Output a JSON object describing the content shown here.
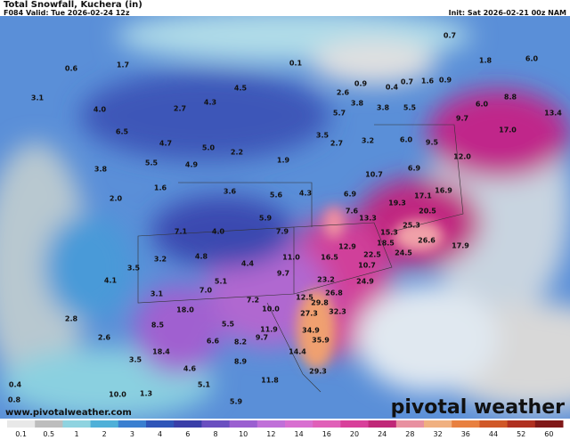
{
  "header": {
    "title": "Total Snowfall, Kuchera (in)",
    "valid": "F084 Valid: Tue 2026-02-24 12z",
    "init": "Init: Sat 2026-02-21 00z NAM"
  },
  "map_labels": [
    "0.6",
    "1.7",
    "0.1",
    "0.7",
    "6.0",
    "1.8",
    "3.1",
    "4.0",
    "2.7",
    "4.3",
    "4.5",
    "0.9",
    "0.4",
    "0.7",
    "1.6",
    "0.9",
    "8.8",
    "6.0",
    "2.6",
    "3.8",
    "3.8",
    "5.5",
    "5.7",
    "9.7",
    "13.4",
    "17.0",
    "6.5",
    "4.7",
    "5.0",
    "3.5",
    "2.7",
    "3.2",
    "6.0",
    "9.5",
    "12.0",
    "5.5",
    "4.9",
    "2.2",
    "1.9",
    "3.8",
    "10.7",
    "6.9",
    "1.6",
    "3.6",
    "5.6",
    "4.3",
    "6.9",
    "19.3",
    "17.1",
    "16.9",
    "2.0",
    "20.5",
    "5.9",
    "7.6",
    "13.3",
    "25.3",
    "7.1",
    "4.0",
    "7.9",
    "15.3",
    "26.6",
    "17.9",
    "12.9",
    "18.5",
    "22.5",
    "24.5",
    "11.0",
    "16.5",
    "3.5",
    "4.8",
    "3.2",
    "4.4",
    "9.7",
    "23.2",
    "10.7",
    "24.9",
    "4.1",
    "7.0",
    "5.1",
    "26.8",
    "12.5",
    "29.8",
    "7.2",
    "10.0",
    "3.1",
    "18.0",
    "27.3",
    "32.3",
    "2.8",
    "8.5",
    "5.5",
    "11.9",
    "34.9",
    "2.6",
    "6.6",
    "8.2",
    "9.7",
    "35.9",
    "3.5",
    "18.4",
    "4.6",
    "8.9",
    "14.4",
    "29.3",
    "10.0",
    "1.3",
    "5.1",
    "11.8",
    "0.4",
    "0.8",
    "5.9"
  ],
  "watermark": "www.pivotalweather.com",
  "logo": "pivotal weather",
  "colorbar": {
    "ticks": [
      0.1,
      0.5,
      1,
      2,
      3,
      4,
      6,
      8,
      10,
      12,
      14,
      16,
      20,
      24,
      28,
      32,
      36,
      44,
      52,
      60
    ],
    "colors": [
      "#e8e8e8",
      "#bdbdbd",
      "#8fd3e0",
      "#4fb0d8",
      "#3a7fd0",
      "#2f55b8",
      "#3a3fa8",
      "#6a4fc0",
      "#9a5fd0",
      "#c070d8",
      "#d86fd0",
      "#e060b8",
      "#d8409a",
      "#c02878",
      "#e890a0",
      "#f0b080",
      "#e88040",
      "#d05828",
      "#b03020",
      "#801818"
    ]
  }
}
